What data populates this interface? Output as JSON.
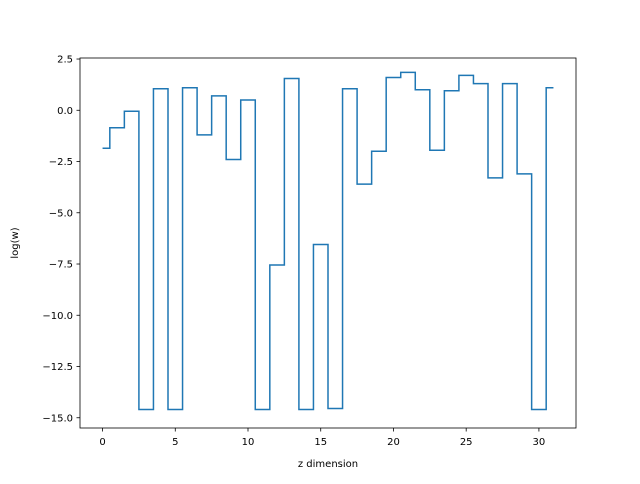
{
  "chart_data": {
    "type": "line",
    "drawstyle": "steps-mid",
    "title": "",
    "xlabel": "z dimension",
    "ylabel": "log(w)",
    "xlim": [
      -1.55,
      32.55
    ],
    "ylim": [
      -15.5,
      2.55
    ],
    "xticks": [
      0,
      5,
      10,
      15,
      20,
      25,
      30
    ],
    "xtick_labels": [
      "0",
      "5",
      "10",
      "15",
      "20",
      "25",
      "30"
    ],
    "yticks": [
      2.5,
      0.0,
      -2.5,
      -5.0,
      -7.5,
      -10.0,
      -12.5,
      -15.0
    ],
    "ytick_labels": [
      "2.5",
      "0.0",
      "−2.5",
      "−5.0",
      "−7.5",
      "−10.0",
      "−12.5",
      "−15.0"
    ],
    "grid": false,
    "series": [
      {
        "color": "#1f77b4",
        "x": [
          0,
          1,
          2,
          3,
          4,
          5,
          6,
          7,
          8,
          9,
          10,
          11,
          12,
          13,
          14,
          15,
          16,
          17,
          18,
          19,
          20,
          21,
          22,
          23,
          24,
          25,
          26,
          27,
          28,
          29,
          30,
          31
        ],
        "values": [
          -1.85,
          -0.85,
          -0.05,
          -14.6,
          1.05,
          -14.6,
          1.1,
          -1.2,
          0.7,
          -2.4,
          0.5,
          -14.6,
          -7.55,
          1.55,
          -14.6,
          -6.55,
          -14.55,
          1.05,
          -3.6,
          -2.0,
          1.6,
          1.85,
          1.0,
          -1.95,
          0.95,
          1.7,
          1.3,
          -3.3,
          1.3,
          -3.1,
          -14.6,
          1.1
        ]
      }
    ]
  }
}
